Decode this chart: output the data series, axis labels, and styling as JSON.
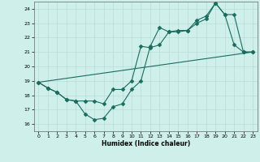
{
  "xlabel": "Humidex (Indice chaleur)",
  "xlim": [
    -0.5,
    23.5
  ],
  "ylim": [
    15.5,
    24.5
  ],
  "xticks": [
    0,
    1,
    2,
    3,
    4,
    5,
    6,
    7,
    8,
    9,
    10,
    11,
    12,
    13,
    14,
    15,
    16,
    17,
    18,
    19,
    20,
    21,
    22,
    23
  ],
  "yticks": [
    16,
    17,
    18,
    19,
    20,
    21,
    22,
    23,
    24
  ],
  "background_color": "#cff0ea",
  "grid_color": "#b8ddd8",
  "line_color": "#1a6b5e",
  "lines": [
    {
      "x": [
        0,
        1,
        2,
        3,
        4,
        5,
        6,
        7,
        8,
        9,
        10,
        11,
        12,
        13,
        14,
        15,
        16,
        17,
        18,
        19,
        20,
        21,
        22,
        23
      ],
      "y": [
        18.9,
        18.5,
        18.2,
        17.7,
        17.6,
        16.7,
        16.3,
        16.4,
        17.2,
        17.4,
        18.4,
        19.0,
        21.4,
        22.7,
        22.4,
        22.5,
        22.5,
        23.0,
        23.3,
        24.4,
        23.6,
        21.5,
        21.0,
        21.0
      ],
      "marker": "D",
      "markersize": 2.5
    },
    {
      "x": [
        0,
        1,
        2,
        3,
        4,
        5,
        6,
        7,
        8,
        9,
        10,
        11,
        12,
        13,
        14,
        15,
        16,
        17,
        18,
        19,
        20,
        21,
        22,
        23
      ],
      "y": [
        18.9,
        18.5,
        18.2,
        17.7,
        17.6,
        17.6,
        17.6,
        17.4,
        18.4,
        18.4,
        19.0,
        21.4,
        21.3,
        21.5,
        22.4,
        22.4,
        22.5,
        23.2,
        23.5,
        24.4,
        23.6,
        23.6,
        21.0,
        21.0
      ],
      "marker": "D",
      "markersize": 2.5
    },
    {
      "x": [
        0,
        23
      ],
      "y": [
        18.9,
        21.0
      ],
      "marker": null,
      "markersize": 0
    }
  ]
}
